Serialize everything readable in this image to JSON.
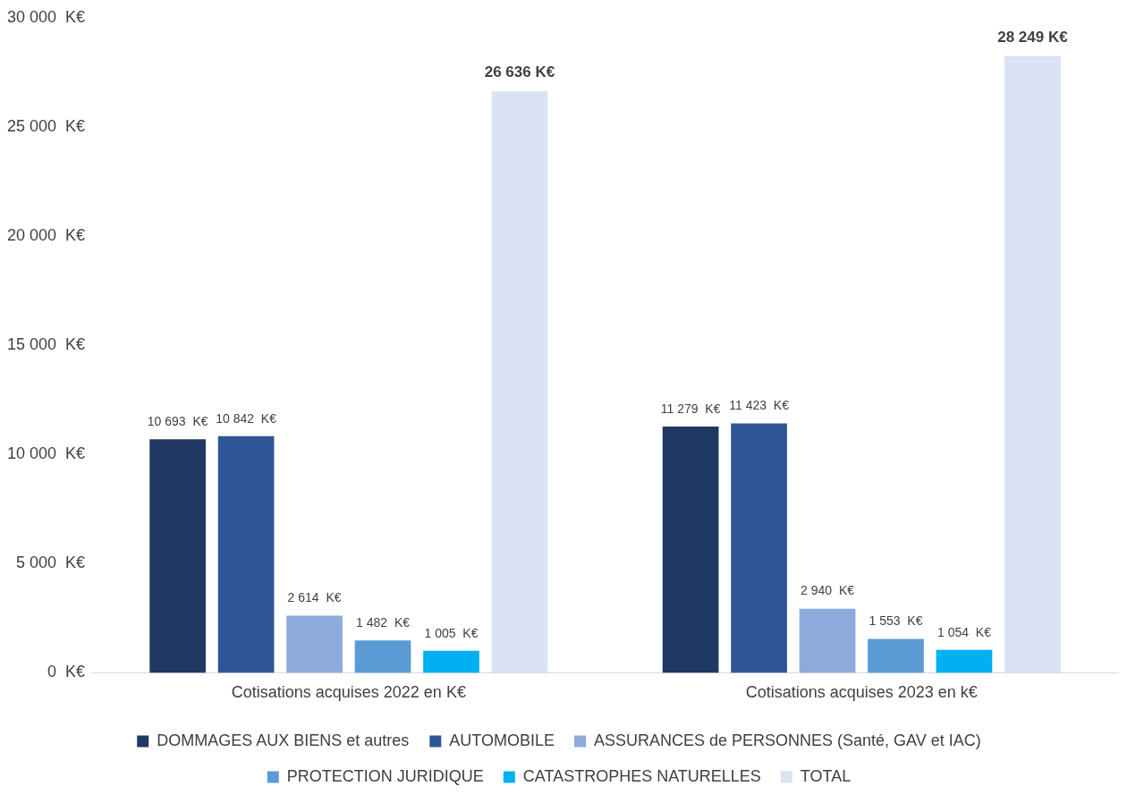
{
  "chart_data": {
    "type": "bar",
    "categories": [
      "Cotisations acquises 2022 en K€",
      "Cotisations acquises 2023 en k€"
    ],
    "series": [
      {
        "name": "DOMMAGES AUX BIENS et autres",
        "color": "#1f3864",
        "values": [
          10693,
          11279
        ],
        "value_labels": [
          "10 693  K€",
          "11 279  K€"
        ]
      },
      {
        "name": "AUTOMOBILE",
        "color": "#2f5597",
        "values": [
          10842,
          11423
        ],
        "value_labels": [
          "10 842  K€",
          "11 423  K€"
        ]
      },
      {
        "name": "ASSURANCES de PERSONNES (Santé, GAV et IAC)",
        "color": "#8faadc",
        "values": [
          2614,
          2940
        ],
        "value_labels": [
          "2 614  K€",
          "2 940  K€"
        ]
      },
      {
        "name": "PROTECTION JURIDIQUE",
        "color": "#5b9bd5",
        "values": [
          1482,
          1553
        ],
        "value_labels": [
          "1 482  K€",
          "1 553  K€"
        ]
      },
      {
        "name": "CATASTROPHES NATURELLES",
        "color": "#00b0f0",
        "values": [
          1005,
          1054
        ],
        "value_labels": [
          "1 005  K€",
          "1 054  K€"
        ]
      },
      {
        "name": "TOTAL",
        "color": "#dae3f3",
        "values": [
          26636,
          28249
        ],
        "value_labels": [
          "26 636 K€",
          "28 249 K€"
        ]
      }
    ],
    "ylim": [
      0,
      30000
    ],
    "yticks": [
      {
        "value": 0,
        "label": "0  K€"
      },
      {
        "value": 5000,
        "label": "5 000  K€"
      },
      {
        "value": 10000,
        "label": "10 000  K€"
      },
      {
        "value": 15000,
        "label": "15 000  K€"
      },
      {
        "value": 20000,
        "label": "20 000  K€"
      },
      {
        "value": 25000,
        "label": "25 000  K€"
      },
      {
        "value": 30000,
        "label": "30 000  K€"
      }
    ],
    "grid": false,
    "legend": "bottom"
  }
}
